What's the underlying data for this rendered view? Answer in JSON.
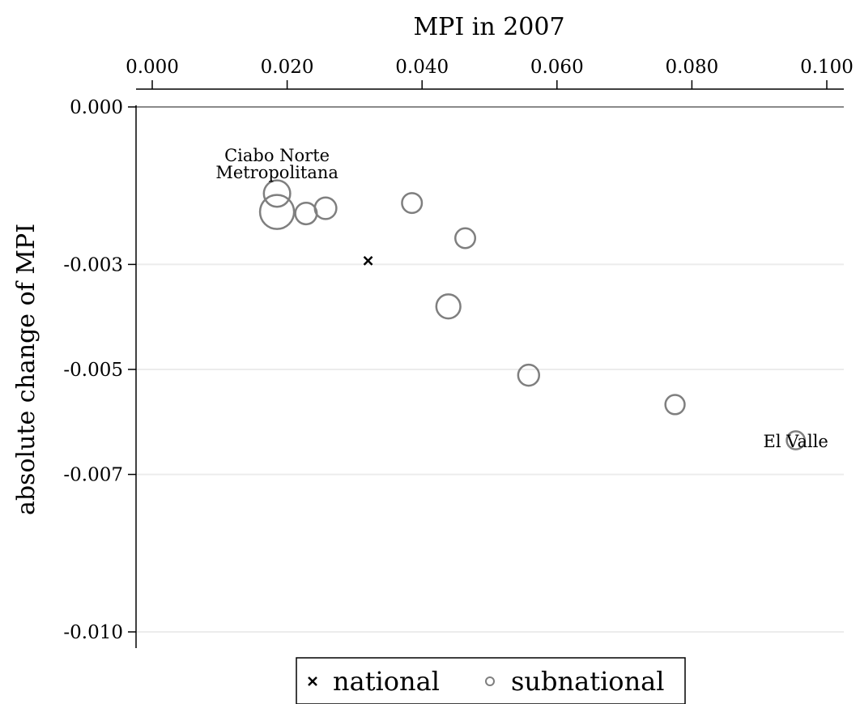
{
  "chart_data": {
    "type": "scatter",
    "title": "",
    "xlabel": "MPI in 2007",
    "ylabel": "absolute change of MPI",
    "x_axis_position": "top",
    "xlim": [
      0.0,
      0.1
    ],
    "ylim": [
      -0.01,
      0.0
    ],
    "x_ticks": [
      "0.000",
      "0.020",
      "0.040",
      "0.060",
      "0.080",
      "0.100"
    ],
    "y_ticks": [
      "0.000",
      "-0.003",
      "-0.005",
      "-0.007",
      "-0.010"
    ],
    "grid": "horizontal",
    "legend_position": "bottom",
    "series": [
      {
        "name": "national",
        "marker": "x",
        "color": "#000000",
        "points": [
          {
            "x": 0.032,
            "y": -0.00293
          }
        ]
      },
      {
        "name": "subnational",
        "marker": "hollow-circle",
        "color": "#7f7f7f",
        "points": [
          {
            "x": 0.0185,
            "y": -0.00165,
            "size": 3,
            "label": "Ciabo Norte"
          },
          {
            "x": 0.0185,
            "y": -0.002,
            "size": 5,
            "label": "Metropolitana"
          },
          {
            "x": 0.0228,
            "y": -0.00203,
            "size": 2,
            "label": ""
          },
          {
            "x": 0.0257,
            "y": -0.00193,
            "size": 2,
            "label": ""
          },
          {
            "x": 0.0385,
            "y": -0.00183,
            "size": 1.7,
            "label": ""
          },
          {
            "x": 0.0464,
            "y": -0.0025,
            "size": 1.7,
            "label": ""
          },
          {
            "x": 0.0439,
            "y": -0.0038,
            "size": 2.5,
            "label": ""
          },
          {
            "x": 0.0558,
            "y": -0.00511,
            "size": 1.9,
            "label": ""
          },
          {
            "x": 0.0775,
            "y": -0.00567,
            "size": 1.6,
            "label": ""
          },
          {
            "x": 0.0954,
            "y": -0.00635,
            "size": 1.4,
            "label": "El Valle"
          }
        ]
      }
    ],
    "legend": [
      {
        "marker": "x",
        "label": "national"
      },
      {
        "marker": "hollow-circle",
        "label": "subnational"
      }
    ]
  }
}
